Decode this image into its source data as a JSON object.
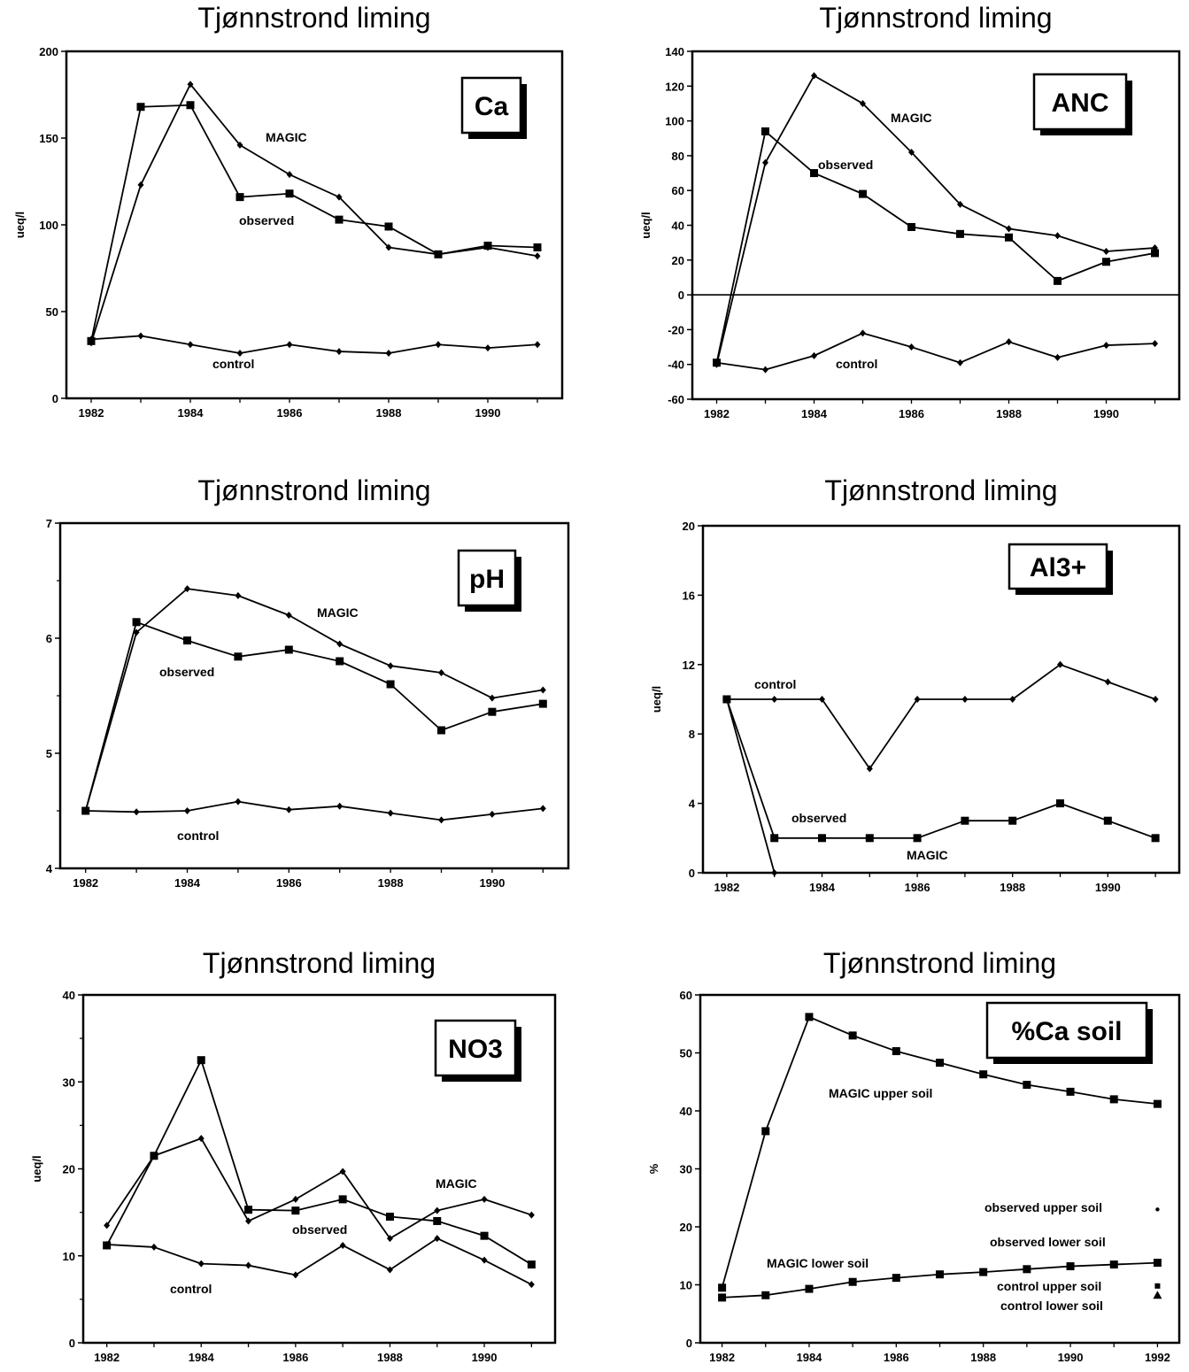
{
  "panels": [
    {
      "title": "Tjønnstrond liming",
      "chart_data": {
        "type": "line",
        "title": "Tjønnstrond liming",
        "badge": "Ca",
        "ylabel": "ueq/l",
        "xlim": [
          1981.5,
          1991.5
        ],
        "ylim": [
          0,
          200
        ],
        "yticks": [
          0,
          50,
          100,
          150,
          200
        ],
        "xticks": [
          1982,
          1984,
          1986,
          1988,
          1990
        ],
        "x": [
          1982,
          1983,
          1984,
          1985,
          1986,
          1987,
          1988,
          1989,
          1990,
          1991
        ],
        "series": [
          {
            "name": "MAGIC",
            "marker": "diamond",
            "values": [
              32,
              123,
              181,
              146,
              129,
              116,
              87,
              83,
              87,
              82
            ]
          },
          {
            "name": "observed",
            "marker": "square",
            "values": [
              33,
              168,
              169,
              116,
              118,
              103,
              99,
              83,
              88,
              87
            ]
          },
          {
            "name": "control",
            "marker": "diamond",
            "values": [
              34,
              36,
              31,
              26,
              31,
              27,
              26,
              31,
              29,
              31
            ]
          }
        ],
        "zero_line": false
      }
    },
    {
      "title": "Tjønnstrond liming",
      "chart_data": {
        "type": "line",
        "title": "Tjønnstrond liming",
        "badge": "ANC",
        "ylabel": "ueq/l",
        "xlim": [
          1981.5,
          1991.5
        ],
        "ylim": [
          -60,
          140
        ],
        "yticks": [
          -60,
          -40,
          -20,
          0,
          20,
          40,
          60,
          80,
          100,
          120,
          140
        ],
        "xticks": [
          1982,
          1984,
          1986,
          1988,
          1990
        ],
        "x": [
          1982,
          1983,
          1984,
          1985,
          1986,
          1987,
          1988,
          1989,
          1990,
          1991
        ],
        "series": [
          {
            "name": "MAGIC",
            "marker": "diamond",
            "values": [
              -40,
              76,
              126,
              110,
              82,
              52,
              38,
              34,
              25,
              27
            ]
          },
          {
            "name": "observed",
            "marker": "square",
            "values": [
              -39,
              94,
              70,
              58,
              39,
              35,
              33,
              8,
              19,
              24
            ]
          },
          {
            "name": "control",
            "marker": "diamond",
            "values": [
              -39,
              -43,
              -35,
              -22,
              -30,
              -39,
              -27,
              -36,
              -29,
              -28
            ]
          }
        ],
        "zero_line": true
      }
    },
    {
      "title": "Tjønnstrond liming",
      "chart_data": {
        "type": "line",
        "title": "Tjønnstrond liming",
        "badge": "pH",
        "ylabel": "",
        "xlim": [
          1981.5,
          1991.5
        ],
        "ylim": [
          4,
          7
        ],
        "yticks": [
          4,
          5,
          6,
          7
        ],
        "minor_yticks": [
          4.5,
          5.5,
          6.5
        ],
        "xticks": [
          1982,
          1984,
          1986,
          1988,
          1990
        ],
        "x": [
          1982,
          1983,
          1984,
          1985,
          1986,
          1987,
          1988,
          1989,
          1990,
          1991
        ],
        "series": [
          {
            "name": "MAGIC",
            "marker": "diamond",
            "values": [
              4.5,
              6.05,
              6.43,
              6.37,
              6.2,
              5.95,
              5.76,
              5.7,
              5.48,
              5.55
            ]
          },
          {
            "name": "observed",
            "marker": "square",
            "values": [
              4.5,
              6.14,
              5.98,
              5.84,
              5.9,
              5.8,
              5.6,
              5.2,
              5.36,
              5.43
            ]
          },
          {
            "name": "control",
            "marker": "diamond",
            "values": [
              4.5,
              4.49,
              4.5,
              4.58,
              4.51,
              4.54,
              4.48,
              4.42,
              4.47,
              4.52
            ]
          }
        ],
        "zero_line": false
      }
    },
    {
      "title": "Tjønnstrond liming",
      "chart_data": {
        "type": "line",
        "title": "Tjønnstrond liming",
        "badge": "Al3+",
        "ylabel": "ueq/l",
        "xlim": [
          1981.5,
          1991.5
        ],
        "ylim": [
          0,
          20
        ],
        "yticks": [
          0,
          4,
          8,
          12,
          16,
          20
        ],
        "xticks": [
          1982,
          1984,
          1986,
          1988,
          1990
        ],
        "x": [
          1982,
          1983,
          1984,
          1985,
          1986,
          1987,
          1988,
          1989,
          1990,
          1991
        ],
        "series": [
          {
            "name": "control",
            "marker": "diamond",
            "values": [
              10,
              10,
              10,
              6,
              10,
              10,
              10,
              12,
              11,
              10
            ]
          },
          {
            "name": "observed",
            "marker": "square",
            "values": [
              10,
              2,
              2,
              2,
              2,
              3,
              3,
              4,
              3,
              2
            ]
          },
          {
            "name": "MAGIC",
            "marker": "diamond",
            "x": [
              1982,
              1983
            ],
            "values": [
              10,
              0
            ]
          }
        ],
        "zero_line": false
      }
    },
    {
      "title": "Tjønnstrond liming",
      "chart_data": {
        "type": "line",
        "title": "Tjønnstrond liming",
        "badge": "NO3",
        "ylabel": "ueq/l",
        "xlim": [
          1981.5,
          1991.5
        ],
        "ylim": [
          0,
          40
        ],
        "yticks": [
          0,
          10,
          20,
          30,
          40
        ],
        "minor_yticks": [
          5,
          15,
          25,
          35
        ],
        "xticks": [
          1982,
          1984,
          1986,
          1988,
          1990
        ],
        "x": [
          1982,
          1983,
          1984,
          1985,
          1986,
          1987,
          1988,
          1989,
          1990,
          1991
        ],
        "series": [
          {
            "name": "MAGIC",
            "marker": "diamond",
            "values": [
              13.5,
              21.5,
              23.5,
              14,
              16.5,
              19.7,
              12,
              15.2,
              16.5,
              14.7
            ]
          },
          {
            "name": "observed",
            "marker": "square",
            "values": [
              11.2,
              21.5,
              32.5,
              15.3,
              15.2,
              16.5,
              14.5,
              14,
              12.3,
              9
            ]
          },
          {
            "name": "control",
            "marker": "diamond",
            "values": [
              11.3,
              11,
              9.1,
              8.9,
              7.8,
              11.2,
              8.4,
              12,
              9.5,
              6.7
            ]
          }
        ],
        "zero_line": false
      }
    },
    {
      "title": "Tjønnstrond liming",
      "chart_data": {
        "type": "line",
        "title": "Tjønnstrond liming",
        "badge": "%Ca soil",
        "ylabel": "%",
        "xlim": [
          1981.5,
          1992.5
        ],
        "ylim": [
          0,
          60
        ],
        "yticks": [
          0,
          10,
          20,
          30,
          40,
          50,
          60
        ],
        "xticks": [
          1982,
          1984,
          1986,
          1988,
          1990,
          1992
        ],
        "x": [
          1982,
          1983,
          1984,
          1985,
          1986,
          1987,
          1988,
          1989,
          1990,
          1991,
          1992
        ],
        "series": [
          {
            "name": "MAGIC upper soil",
            "marker": "square",
            "values": [
              9.5,
              36.5,
              56.2,
              53,
              50.3,
              48.3,
              46.3,
              44.5,
              43.3,
              42,
              41.2
            ]
          },
          {
            "name": "MAGIC lower soil",
            "marker": "square",
            "values": [
              7.8,
              8.2,
              9.3,
              10.5,
              11.2,
              11.8,
              12.2,
              12.7,
              13.2,
              13.5,
              13.8
            ]
          },
          {
            "name": "observed upper soil",
            "marker": "point",
            "x": [
              1992
            ],
            "values": [
              23
            ]
          },
          {
            "name": "observed lower soil",
            "marker": "point",
            "x": [
              1992
            ],
            "values": [
              14
            ]
          },
          {
            "name": "control upper soil",
            "marker": "smallsquare",
            "x": [
              1992
            ],
            "values": [
              9.8
            ]
          },
          {
            "name": "control lower soil",
            "marker": "triangle",
            "x": [
              1992
            ],
            "values": [
              8.2
            ]
          }
        ],
        "zero_line": false
      }
    }
  ]
}
